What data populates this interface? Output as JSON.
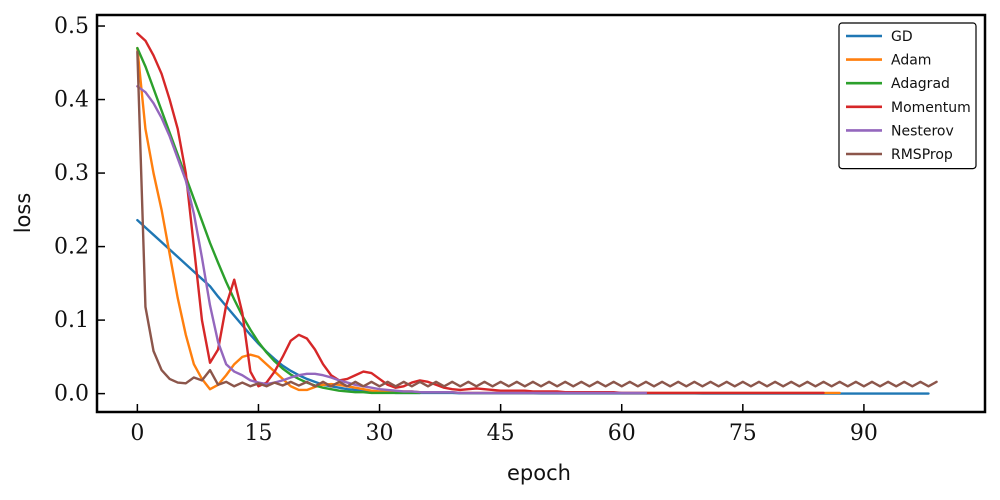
{
  "chart_data": {
    "type": "line",
    "xlabel": "epoch",
    "ylabel": "loss",
    "xlim": [
      -5,
      105
    ],
    "ylim": [
      -0.025,
      0.515
    ],
    "xticks": [
      0,
      15,
      30,
      45,
      60,
      75,
      90
    ],
    "yticks": [
      0.0,
      0.1,
      0.2,
      0.3,
      0.4,
      0.5
    ],
    "ytick_labels": [
      "0.0",
      "0.1",
      "0.2",
      "0.3",
      "0.4",
      "0.5"
    ],
    "grid": false,
    "legend_position": "top-right",
    "x_start": 0,
    "series": [
      {
        "name": "GD",
        "color": "#1f77b4",
        "values": [
          0.236,
          0.226,
          0.216,
          0.206,
          0.196,
          0.186,
          0.176,
          0.166,
          0.156,
          0.146,
          0.132,
          0.119,
          0.106,
          0.093,
          0.08,
          0.068,
          0.057,
          0.047,
          0.038,
          0.031,
          0.025,
          0.02,
          0.016,
          0.012,
          0.01,
          0.008,
          0.006,
          0.005,
          0.004,
          0.003,
          0.002,
          0.002,
          0.001,
          0.001,
          0.001,
          0.001,
          0.001,
          0.001,
          0.001,
          0.001,
          0.0005,
          0.0005,
          0.0005,
          0.0005,
          0.0005,
          0.0005,
          0.0005,
          0.0005,
          0.0005,
          0.0005,
          0.0003,
          0.0003,
          0.0003,
          0.0003,
          0.0003,
          0.0003,
          0.0003,
          0.0003,
          0.0003,
          0.0003,
          0.0002,
          0.0002,
          0.0002,
          0.0002,
          0.0002,
          0.0002,
          0.0002,
          0.0002,
          0.0002,
          0.0002,
          0.0001,
          0.0001,
          0.0001,
          0.0001,
          0.0001,
          0.0001,
          0.0001,
          0.0001,
          0.0001,
          0.0001,
          0.0001,
          0.0001,
          0.0001,
          0.0001,
          0.0001,
          0.0001,
          0.0001,
          0.0001,
          0.0001,
          0.0001,
          0.0001,
          0.0001,
          0.0001,
          0.0001,
          0.0001,
          0.0001,
          0.0001,
          0.0001,
          0.0001
        ]
      },
      {
        "name": "Adam",
        "color": "#ff7f0e",
        "values": [
          0.47,
          0.36,
          0.3,
          0.25,
          0.19,
          0.13,
          0.08,
          0.04,
          0.02,
          0.006,
          0.012,
          0.025,
          0.04,
          0.05,
          0.053,
          0.05,
          0.04,
          0.03,
          0.02,
          0.01,
          0.005,
          0.005,
          0.009,
          0.012,
          0.013,
          0.012,
          0.01,
          0.008,
          0.006,
          0.004,
          0.003,
          0.003,
          0.003,
          0.003,
          0.003,
          0.002,
          0.002,
          0.002,
          0.002,
          0.002,
          0.001,
          0.001,
          0.001,
          0.001,
          0.001,
          0.001,
          0.001,
          0.001,
          0.001,
          0.001,
          0.001,
          0.001,
          0.001,
          0.001,
          0.001,
          0.001,
          0.001,
          0.001,
          0.001,
          0.001,
          0.001,
          0.001,
          0.001,
          0.001,
          0.001,
          0.001,
          0.001,
          0.001,
          0.001,
          0.001,
          0.001,
          0.001,
          0.001,
          0.001,
          0.001,
          0.001,
          0.001,
          0.001,
          0.001,
          0.001,
          0.001,
          0.001,
          0.001,
          0.001,
          0.001,
          0.001,
          0.001,
          0.001
        ]
      },
      {
        "name": "Adagrad",
        "color": "#2ca02c",
        "values": [
          0.47,
          0.445,
          0.415,
          0.385,
          0.355,
          0.325,
          0.295,
          0.265,
          0.235,
          0.205,
          0.178,
          0.152,
          0.128,
          0.106,
          0.087,
          0.07,
          0.056,
          0.044,
          0.034,
          0.026,
          0.02,
          0.015,
          0.011,
          0.008,
          0.006,
          0.004,
          0.003,
          0.002,
          0.002,
          0.001,
          0.001,
          0.001,
          0.001,
          0.001,
          0.001,
          0.001
        ]
      },
      {
        "name": "Momentum",
        "color": "#d62728",
        "values": [
          0.49,
          0.48,
          0.46,
          0.435,
          0.4,
          0.36,
          0.3,
          0.2,
          0.1,
          0.042,
          0.06,
          0.12,
          0.155,
          0.11,
          0.03,
          0.01,
          0.015,
          0.03,
          0.05,
          0.072,
          0.08,
          0.075,
          0.06,
          0.04,
          0.025,
          0.018,
          0.02,
          0.025,
          0.03,
          0.028,
          0.02,
          0.012,
          0.008,
          0.01,
          0.015,
          0.018,
          0.016,
          0.012,
          0.008,
          0.006,
          0.005,
          0.006,
          0.007,
          0.006,
          0.005,
          0.004,
          0.004,
          0.004,
          0.004,
          0.003,
          0.003,
          0.003,
          0.003,
          0.002,
          0.002,
          0.002,
          0.002,
          0.002,
          0.002,
          0.002,
          0.001,
          0.001,
          0.001,
          0.001,
          0.001,
          0.001,
          0.001,
          0.001,
          0.001,
          0.001,
          0.001,
          0.001,
          0.001,
          0.001,
          0.001,
          0.001,
          0.001,
          0.001,
          0.001,
          0.001,
          0.001,
          0.001,
          0.001,
          0.001,
          0.001,
          0.001
        ]
      },
      {
        "name": "Nesterov",
        "color": "#9467bd",
        "values": [
          0.418,
          0.41,
          0.395,
          0.375,
          0.35,
          0.32,
          0.29,
          0.245,
          0.185,
          0.12,
          0.07,
          0.04,
          0.03,
          0.025,
          0.018,
          0.015,
          0.013,
          0.015,
          0.018,
          0.022,
          0.025,
          0.027,
          0.027,
          0.025,
          0.022,
          0.018,
          0.015,
          0.012,
          0.01,
          0.008,
          0.006,
          0.005,
          0.004,
          0.003,
          0.003,
          0.002,
          0.002,
          0.002,
          0.002,
          0.002,
          0.001,
          0.001,
          0.001,
          0.001,
          0.001,
          0.001,
          0.001,
          0.001,
          0.001,
          0.001,
          0.001,
          0.001,
          0.001,
          0.001,
          0.001,
          0.001,
          0.001,
          0.001,
          0.001,
          0.001,
          0.001,
          0.001,
          0.001,
          0.001
        ]
      },
      {
        "name": "RMSProp",
        "color": "#8c564b",
        "values": [
          0.465,
          0.118,
          0.058,
          0.032,
          0.02,
          0.015,
          0.014,
          0.022,
          0.018,
          0.032,
          0.012,
          0.016,
          0.01,
          0.015,
          0.01,
          0.014,
          0.01,
          0.015,
          0.011,
          0.016,
          0.011,
          0.016,
          0.01,
          0.016,
          0.01,
          0.016,
          0.01,
          0.016,
          0.01,
          0.016,
          0.01,
          0.016,
          0.01,
          0.016,
          0.01,
          0.016,
          0.01,
          0.016,
          0.01,
          0.016,
          0.01,
          0.016,
          0.01,
          0.016,
          0.01,
          0.016,
          0.01,
          0.016,
          0.01,
          0.016,
          0.01,
          0.016,
          0.01,
          0.016,
          0.01,
          0.016,
          0.01,
          0.016,
          0.01,
          0.016,
          0.01,
          0.016,
          0.01,
          0.016,
          0.01,
          0.016,
          0.01,
          0.016,
          0.01,
          0.016,
          0.01,
          0.016,
          0.01,
          0.016,
          0.01,
          0.016,
          0.01,
          0.016,
          0.01,
          0.016,
          0.01,
          0.016,
          0.01,
          0.016,
          0.01,
          0.016,
          0.01,
          0.016,
          0.01,
          0.016,
          0.01,
          0.016,
          0.01,
          0.016,
          0.01,
          0.016,
          0.01,
          0.016,
          0.01,
          0.016
        ]
      }
    ]
  }
}
